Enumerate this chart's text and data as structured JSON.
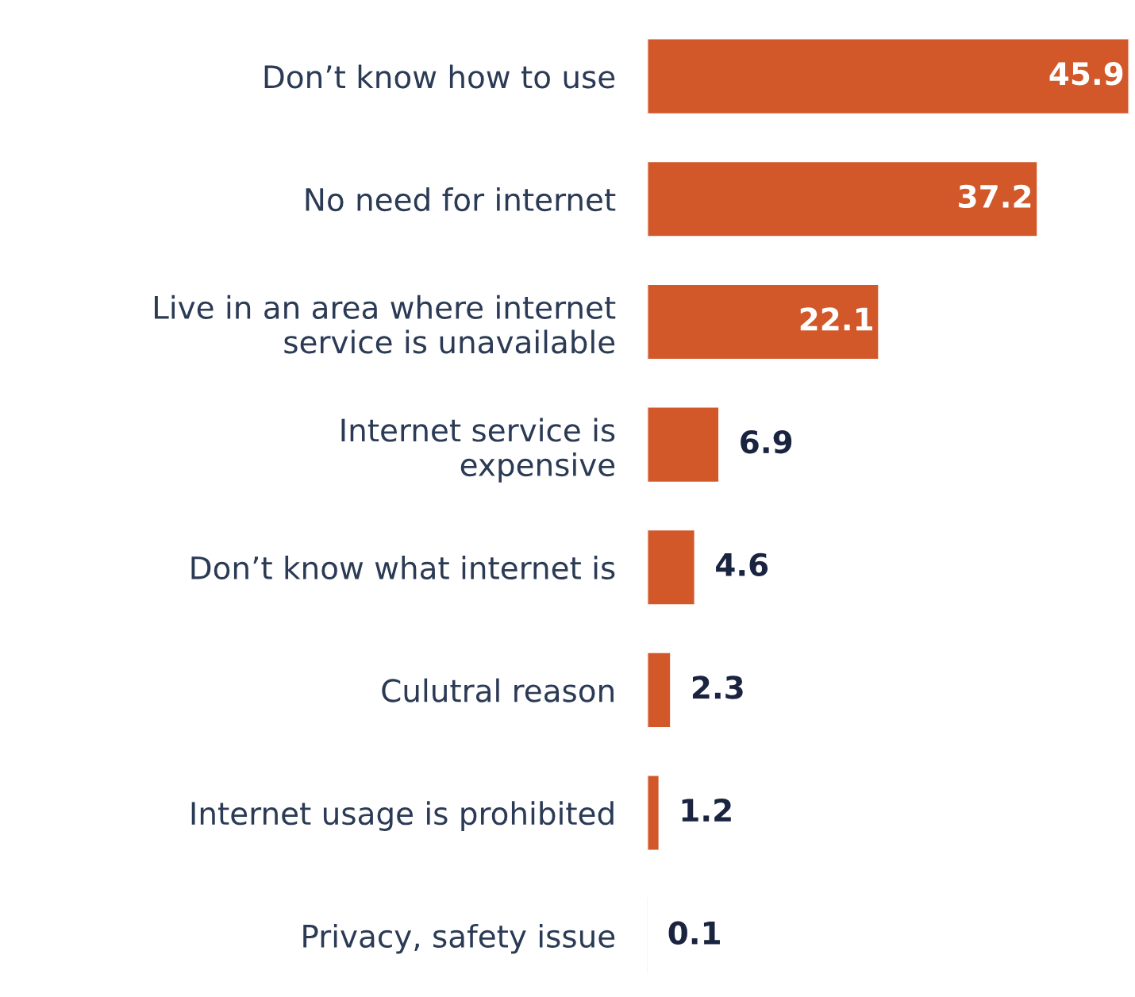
{
  "chart_data": {
    "type": "bar",
    "orientation": "horizontal",
    "categories": [
      "Don’t know how to use",
      "No need for internet",
      "Live in an area where internet\nservice is unavailable",
      "Internet service is\nexpensive",
      "Don’t know what internet is",
      "Culutral reason",
      "Internet usage is prohibited",
      "Privacy, safety issue"
    ],
    "values": [
      45.9,
      37.2,
      22.1,
      6.9,
      4.6,
      2.3,
      1.2,
      0.1
    ],
    "color": "#d2582a",
    "data_labels": true,
    "grid": false,
    "legend": false
  }
}
